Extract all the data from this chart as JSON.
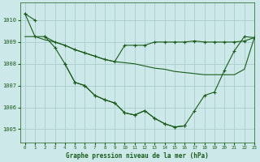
{
  "title": "Graphe pression niveau de la mer (hPa)",
  "bg_color": "#cce8e8",
  "grid_color": "#aacccc",
  "line_color": "#1a5c1a",
  "xlim": [
    -0.5,
    23
  ],
  "ylim": [
    1004.4,
    1010.8
  ],
  "yticks": [
    1005,
    1006,
    1007,
    1008,
    1009,
    1010
  ],
  "xticks": [
    0,
    1,
    2,
    3,
    4,
    5,
    6,
    7,
    8,
    9,
    10,
    11,
    12,
    13,
    14,
    15,
    16,
    17,
    18,
    19,
    20,
    21,
    22,
    23
  ],
  "series1": [
    1010.3,
    1010.0,
    null,
    null,
    1008.0,
    1007.15,
    1007.0,
    1006.55,
    1006.35,
    1006.2,
    1005.75,
    1005.65,
    1005.85,
    1005.5,
    1005.25,
    1005.1,
    1005.15,
    null,
    null,
    null,
    null,
    null,
    null,
    null
  ],
  "series2": [
    null,
    null,
    1009.25,
    1008.75,
    1008.0,
    1007.15,
    1007.0,
    1006.55,
    1006.35,
    1006.2,
    1005.75,
    1005.65,
    1005.85,
    1005.5,
    1005.25,
    1005.1,
    1005.15,
    1005.85,
    1006.55,
    1006.7,
    1007.7,
    1008.6,
    1009.25,
    1009.2
  ],
  "series3": [
    1010.3,
    1009.25,
    1009.25,
    1009.0,
    1008.85,
    1008.65,
    1008.5,
    1008.35,
    1008.2,
    1008.1,
    1008.85,
    1008.85,
    1008.85,
    1009.0,
    1009.0,
    1009.0,
    1009.0,
    1009.05,
    1009.0,
    1009.0,
    1009.0,
    1009.0,
    1009.05,
    1009.2
  ],
  "series4": [
    1009.25,
    1009.25,
    1009.1,
    1009.0,
    1008.85,
    1008.65,
    1008.5,
    1008.35,
    1008.2,
    1008.1,
    1008.05,
    1008.0,
    1007.9,
    1007.8,
    1007.75,
    1007.65,
    1007.6,
    1007.55,
    1007.5,
    1007.5,
    1007.5,
    1007.5,
    1007.75,
    1009.2
  ]
}
